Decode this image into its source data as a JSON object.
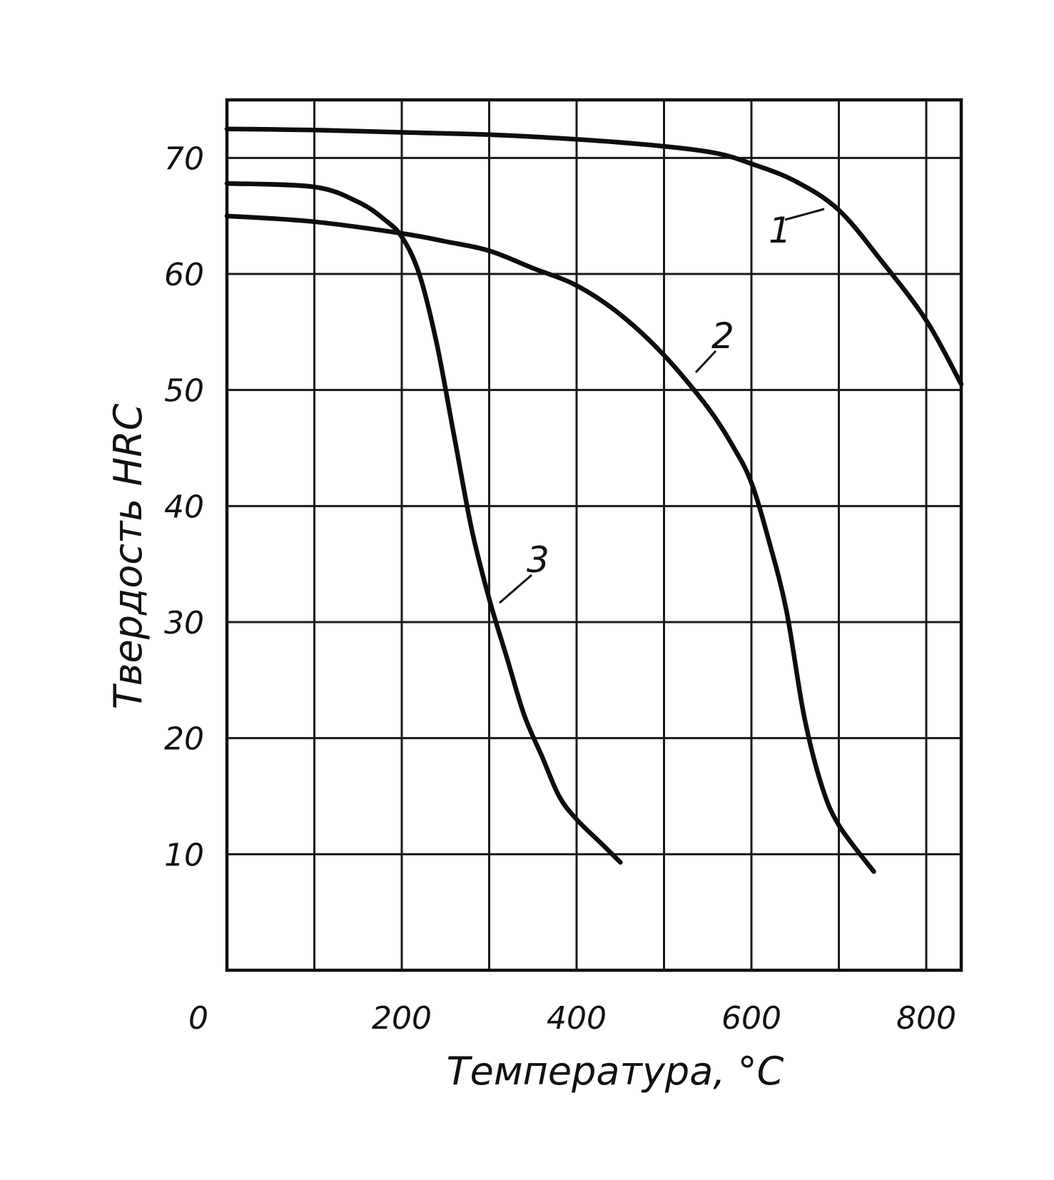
{
  "chart_data": {
    "type": "line",
    "title": "",
    "xlabel": "Температура, °C",
    "ylabel": "Твердость HRC",
    "xlim": [
      0,
      840
    ],
    "ylim": [
      0,
      75
    ],
    "x_ticks": [
      0,
      200,
      400,
      600,
      800
    ],
    "x_tick_labels": [
      "0",
      "200",
      "400",
      "600",
      "800"
    ],
    "y_ticks": [
      10,
      20,
      30,
      40,
      50,
      60,
      70
    ],
    "y_tick_labels": [
      "10",
      "20",
      "30",
      "40",
      "50",
      "60",
      "70"
    ],
    "grid": true,
    "legend": "none",
    "series": [
      {
        "name": "1",
        "x": [
          0,
          100,
          200,
          300,
          400,
          500,
          560,
          600,
          650,
          700,
          750,
          800,
          840
        ],
        "y": [
          72.5,
          72.4,
          72.2,
          72,
          71.6,
          71,
          70.4,
          69.5,
          68,
          65.5,
          61,
          56,
          50.5
        ]
      },
      {
        "name": "2",
        "x": [
          0,
          100,
          200,
          250,
          300,
          350,
          400,
          450,
          500,
          550,
          580,
          600,
          620,
          640,
          660,
          680,
          700,
          740
        ],
        "y": [
          65,
          64.5,
          63.5,
          62.8,
          62,
          60.5,
          59,
          56.5,
          53,
          48.5,
          45,
          42,
          37,
          31,
          22,
          16,
          12.5,
          8.5
        ]
      },
      {
        "name": "3",
        "x": [
          0,
          100,
          150,
          180,
          200,
          220,
          240,
          260,
          280,
          300,
          320,
          340,
          360,
          380,
          400,
          430,
          450
        ],
        "y": [
          67.8,
          67.5,
          66.2,
          64.7,
          63.2,
          60,
          54,
          46,
          38,
          32,
          27,
          22,
          18.5,
          15,
          13,
          10.8,
          9.3
        ]
      }
    ]
  }
}
